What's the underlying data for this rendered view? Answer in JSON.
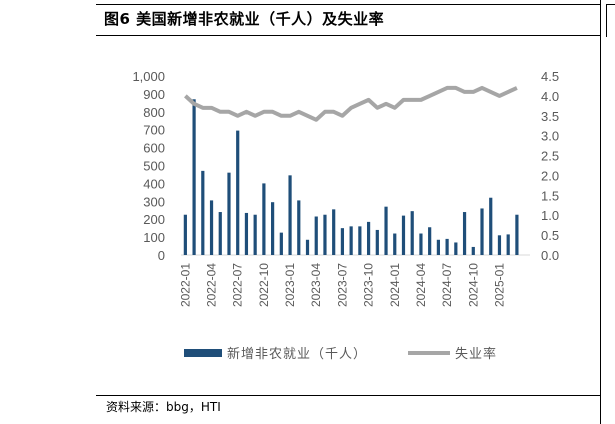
{
  "figure": {
    "title": "图6  美国新增非农就业（千人）及失业率",
    "source": "资料来源：bbg，HTI"
  },
  "colors": {
    "bar": "#1f4e79",
    "line": "#a6a6a6",
    "axis_text": "#595959"
  },
  "chart_data": {
    "type": "bar",
    "x": [
      "2022-01",
      "2022-02",
      "2022-03",
      "2022-04",
      "2022-05",
      "2022-06",
      "2022-07",
      "2022-08",
      "2022-09",
      "2022-10",
      "2022-11",
      "2022-12",
      "2023-01",
      "2023-02",
      "2023-03",
      "2023-04",
      "2023-05",
      "2023-06",
      "2023-07",
      "2023-08",
      "2023-09",
      "2023-10",
      "2023-11",
      "2023-12",
      "2024-01",
      "2024-02",
      "2024-03",
      "2024-04",
      "2024-05",
      "2024-06",
      "2024-07",
      "2024-08",
      "2024-09",
      "2024-10",
      "2024-11",
      "2024-12",
      "2025-01",
      "2025-02",
      "2025-03",
      "2025-04"
    ],
    "x_tick_labels": [
      "2022-01",
      "2022-04",
      "2022-07",
      "2022-10",
      "2023-01",
      "2023-04",
      "2023-07",
      "2023-10",
      "2024-01",
      "2024-04",
      "2024-07",
      "2024-10",
      "2025-01"
    ],
    "series": [
      {
        "name": "新增非农就业（千人）",
        "type": "bar",
        "axis": "left",
        "values": [
          225,
          870,
          470,
          305,
          240,
          460,
          695,
          235,
          225,
          400,
          295,
          125,
          445,
          305,
          85,
          215,
          225,
          255,
          150,
          160,
          160,
          185,
          140,
          270,
          120,
          220,
          245,
          120,
          155,
          85,
          90,
          70,
          240,
          45,
          260,
          320,
          110,
          115,
          225,
          null
        ]
      },
      {
        "name": "失业率",
        "type": "line",
        "axis": "right",
        "values": [
          4.0,
          3.8,
          3.7,
          3.7,
          3.6,
          3.6,
          3.5,
          3.6,
          3.5,
          3.6,
          3.6,
          3.5,
          3.5,
          3.6,
          3.5,
          3.4,
          3.6,
          3.6,
          3.5,
          3.7,
          3.8,
          3.9,
          3.7,
          3.8,
          3.7,
          3.9,
          3.9,
          3.9,
          4.0,
          4.1,
          4.2,
          4.2,
          4.1,
          4.1,
          4.2,
          4.1,
          4.0,
          4.1,
          4.2,
          null
        ]
      }
    ],
    "y_left": {
      "ylim": [
        0,
        1000
      ],
      "ticks": [
        "0",
        "100",
        "200",
        "300",
        "400",
        "500",
        "600",
        "700",
        "800",
        "900",
        "1,000"
      ]
    },
    "y_right": {
      "ylim": [
        0,
        4.5
      ],
      "ticks": [
        "0.0",
        "0.5",
        "1.0",
        "1.5",
        "2.0",
        "2.5",
        "3.0",
        "3.5",
        "4.0",
        "4.5"
      ]
    },
    "grid": false,
    "legend": {
      "position": "bottom",
      "items": [
        "新增非农就业（千人）",
        "失业率"
      ]
    }
  }
}
